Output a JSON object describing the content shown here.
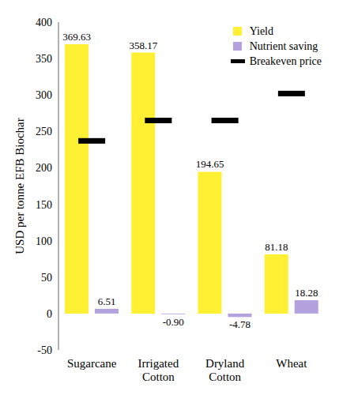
{
  "chart_data": {
    "type": "bar",
    "y_label": "USD per tonne EFB Biochar",
    "categories": [
      "Sugarcane",
      "Irrigated Cotton",
      "Dryland Cotton",
      "Wheat"
    ],
    "series": [
      {
        "name": "Yield",
        "type": "bar",
        "color": "#FFF033",
        "values": [
          369.63,
          358.17,
          194.65,
          81.18
        ],
        "data_labels": true
      },
      {
        "name": "Nutrient saving",
        "type": "bar",
        "color": "#B3A2DE",
        "values": [
          6.51,
          -0.9,
          -4.78,
          18.28
        ],
        "value_labels": [
          "6.51",
          "-0.90",
          "-4.78",
          "18.28"
        ],
        "data_labels": true
      },
      {
        "name": "Breakeven price",
        "type": "scatter",
        "marker": "dash",
        "color": "#000000",
        "values": [
          237,
          265,
          265,
          302
        ]
      }
    ],
    "ylim": [
      -50,
      400
    ],
    "yticks": [
      -50,
      0,
      50,
      100,
      150,
      200,
      250,
      300,
      350,
      400
    ],
    "grid": false,
    "legend": "upper right"
  }
}
